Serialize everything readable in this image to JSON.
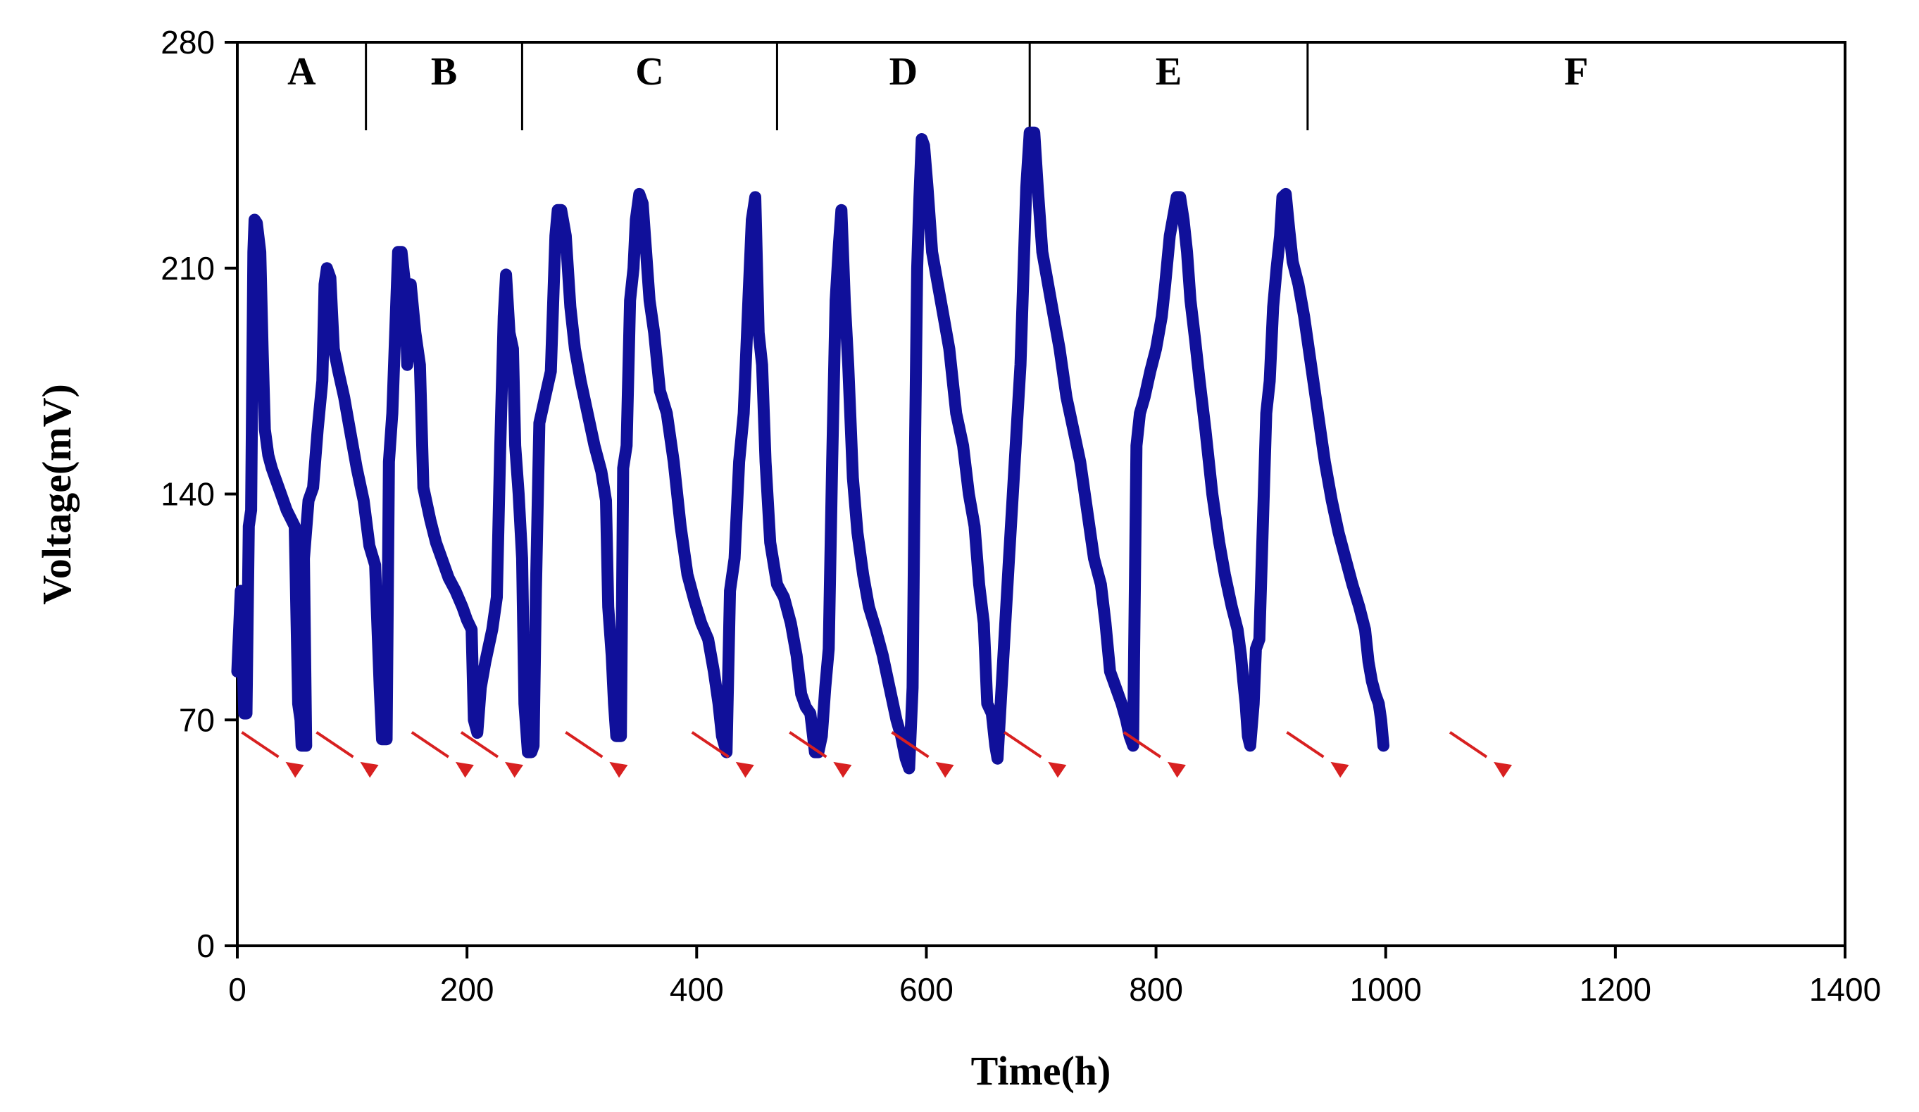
{
  "chart_data": {
    "type": "line",
    "title": "",
    "xlabel": "Time(h)",
    "ylabel": "Voltage(mV)",
    "xlim": [
      0,
      1400
    ],
    "ylim": [
      0,
      280
    ],
    "x_ticks": [
      0,
      200,
      400,
      600,
      800,
      1000,
      1200,
      1400
    ],
    "x_tick_labels": [
      "0",
      "200",
      "400",
      "600",
      "800",
      "1000",
      "1200",
      "1400"
    ],
    "y_ticks": [
      0,
      70,
      140,
      210,
      280
    ],
    "y_tick_labels": [
      "0",
      "70",
      "140",
      "210",
      "280"
    ],
    "grid": false,
    "series_color": "#10109a",
    "arrow_color": "#d82020",
    "phases": [
      {
        "label": "A",
        "start": 0,
        "end": 112
      },
      {
        "label": "B",
        "start": 112,
        "end": 248
      },
      {
        "label": "C",
        "start": 248,
        "end": 470
      },
      {
        "label": "D",
        "start": 470,
        "end": 690
      },
      {
        "label": "E",
        "start": 690,
        "end": 932
      },
      {
        "label": "F",
        "start": 932,
        "end": 1400
      }
    ],
    "series": [
      {
        "name": "Voltage",
        "points": [
          [
            0,
            85
          ],
          [
            3,
            110
          ],
          [
            6,
            72
          ],
          [
            8,
            72
          ],
          [
            10,
            130
          ],
          [
            12,
            135
          ],
          [
            14,
            215
          ],
          [
            15,
            225
          ],
          [
            17,
            224
          ],
          [
            20,
            215
          ],
          [
            22,
            185
          ],
          [
            24,
            160
          ],
          [
            27,
            152
          ],
          [
            30,
            148
          ],
          [
            33,
            145
          ],
          [
            38,
            140
          ],
          [
            43,
            135
          ],
          [
            50,
            130
          ],
          [
            53,
            75
          ],
          [
            55,
            70
          ],
          [
            56,
            62
          ],
          [
            60,
            62
          ],
          [
            58,
            120
          ],
          [
            62,
            138
          ],
          [
            66,
            142
          ],
          [
            70,
            160
          ],
          [
            74,
            175
          ],
          [
            76,
            205
          ],
          [
            78,
            210
          ],
          [
            81,
            207
          ],
          [
            84,
            185
          ],
          [
            88,
            178
          ],
          [
            93,
            170
          ],
          [
            98,
            160
          ],
          [
            104,
            148
          ],
          [
            110,
            138
          ],
          [
            115,
            124
          ],
          [
            120,
            118
          ],
          [
            124,
            80
          ],
          [
            126,
            64
          ],
          [
            130,
            64
          ],
          [
            132,
            150
          ],
          [
            135,
            165
          ],
          [
            140,
            215
          ],
          [
            143,
            215
          ],
          [
            146,
            205
          ],
          [
            148,
            180
          ],
          [
            151,
            205
          ],
          [
            155,
            190
          ],
          [
            159,
            180
          ],
          [
            162,
            142
          ],
          [
            168,
            132
          ],
          [
            173,
            125
          ],
          [
            178,
            120
          ],
          [
            184,
            114
          ],
          [
            190,
            110
          ],
          [
            196,
            105
          ],
          [
            200,
            101
          ],
          [
            204,
            98
          ],
          [
            206,
            70
          ],
          [
            209,
            66
          ],
          [
            212,
            80
          ],
          [
            216,
            88
          ],
          [
            222,
            98
          ],
          [
            226,
            108
          ],
          [
            229,
            155
          ],
          [
            232,
            195
          ],
          [
            234,
            208
          ],
          [
            237,
            190
          ],
          [
            240,
            185
          ],
          [
            242,
            155
          ],
          [
            245,
            140
          ],
          [
            248,
            120
          ],
          [
            250,
            75
          ],
          [
            253,
            60
          ],
          [
            256,
            60
          ],
          [
            258,
            62
          ],
          [
            260,
            110
          ],
          [
            263,
            162
          ],
          [
            268,
            170
          ],
          [
            273,
            178
          ],
          [
            277,
            220
          ],
          [
            279,
            228
          ],
          [
            282,
            228
          ],
          [
            286,
            220
          ],
          [
            290,
            198
          ],
          [
            294,
            185
          ],
          [
            299,
            175
          ],
          [
            305,
            165
          ],
          [
            311,
            155
          ],
          [
            317,
            147
          ],
          [
            321,
            138
          ],
          [
            323,
            105
          ],
          [
            326,
            90
          ],
          [
            328,
            75
          ],
          [
            330,
            65
          ],
          [
            334,
            65
          ],
          [
            336,
            148
          ],
          [
            339,
            155
          ],
          [
            342,
            200
          ],
          [
            345,
            210
          ],
          [
            347,
            225
          ],
          [
            350,
            233
          ],
          [
            353,
            230
          ],
          [
            356,
            215
          ],
          [
            359,
            200
          ],
          [
            363,
            190
          ],
          [
            368,
            172
          ],
          [
            374,
            165
          ],
          [
            380,
            150
          ],
          [
            386,
            130
          ],
          [
            392,
            115
          ],
          [
            398,
            107
          ],
          [
            404,
            100
          ],
          [
            410,
            95
          ],
          [
            415,
            85
          ],
          [
            419,
            75
          ],
          [
            422,
            65
          ],
          [
            426,
            60
          ],
          [
            429,
            110
          ],
          [
            433,
            120
          ],
          [
            437,
            150
          ],
          [
            441,
            165
          ],
          [
            445,
            200
          ],
          [
            448,
            225
          ],
          [
            451,
            232
          ],
          [
            454,
            190
          ],
          [
            457,
            180
          ],
          [
            460,
            150
          ],
          [
            464,
            125
          ],
          [
            470,
            112
          ],
          [
            476,
            108
          ],
          [
            482,
            100
          ],
          [
            487,
            90
          ],
          [
            491,
            78
          ],
          [
            495,
            74
          ],
          [
            499,
            72
          ],
          [
            503,
            60
          ],
          [
            506,
            60
          ],
          [
            509,
            65
          ],
          [
            512,
            80
          ],
          [
            515,
            92
          ],
          [
            518,
            150
          ],
          [
            521,
            200
          ],
          [
            524,
            218
          ],
          [
            526,
            228
          ],
          [
            529,
            200
          ],
          [
            532,
            180
          ],
          [
            536,
            145
          ],
          [
            540,
            128
          ],
          [
            545,
            115
          ],
          [
            550,
            105
          ],
          [
            556,
            98
          ],
          [
            562,
            90
          ],
          [
            568,
            80
          ],
          [
            574,
            70
          ],
          [
            578,
            65
          ],
          [
            582,
            58
          ],
          [
            585,
            55
          ],
          [
            588,
            80
          ],
          [
            590,
            150
          ],
          [
            592,
            210
          ],
          [
            594,
            232
          ],
          [
            596,
            250
          ],
          [
            598,
            248
          ],
          [
            601,
            235
          ],
          [
            605,
            215
          ],
          [
            610,
            205
          ],
          [
            615,
            195
          ],
          [
            620,
            185
          ],
          [
            626,
            165
          ],
          [
            632,
            155
          ],
          [
            637,
            140
          ],
          [
            642,
            130
          ],
          [
            646,
            112
          ],
          [
            650,
            100
          ],
          [
            653,
            75
          ],
          [
            657,
            72
          ],
          [
            660,
            62
          ],
          [
            662,
            58
          ],
          [
            672,
            120
          ],
          [
            682,
            180
          ],
          [
            687,
            235
          ],
          [
            690,
            252
          ],
          [
            694,
            252
          ],
          [
            697,
            235
          ],
          [
            701,
            215
          ],
          [
            706,
            205
          ],
          [
            711,
            195
          ],
          [
            716,
            185
          ],
          [
            722,
            170
          ],
          [
            728,
            160
          ],
          [
            734,
            150
          ],
          [
            740,
            135
          ],
          [
            746,
            120
          ],
          [
            752,
            112
          ],
          [
            756,
            100
          ],
          [
            760,
            85
          ],
          [
            765,
            80
          ],
          [
            770,
            75
          ],
          [
            774,
            70
          ],
          [
            777,
            65
          ],
          [
            780,
            62
          ],
          [
            783,
            155
          ],
          [
            786,
            165
          ],
          [
            790,
            170
          ],
          [
            795,
            178
          ],
          [
            800,
            185
          ],
          [
            805,
            195
          ],
          [
            808,
            205
          ],
          [
            812,
            220
          ],
          [
            816,
            228
          ],
          [
            818,
            232
          ],
          [
            821,
            232
          ],
          [
            824,
            225
          ],
          [
            827,
            215
          ],
          [
            830,
            200
          ],
          [
            834,
            188
          ],
          [
            838,
            175
          ],
          [
            843,
            160
          ],
          [
            849,
            140
          ],
          [
            855,
            125
          ],
          [
            860,
            115
          ],
          [
            866,
            105
          ],
          [
            871,
            98
          ],
          [
            874,
            90
          ],
          [
            876,
            82
          ],
          [
            878,
            75
          ],
          [
            880,
            65
          ],
          [
            882,
            62
          ],
          [
            885,
            75
          ],
          [
            887,
            92
          ],
          [
            890,
            95
          ],
          [
            893,
            130
          ],
          [
            896,
            165
          ],
          [
            899,
            175
          ],
          [
            902,
            198
          ],
          [
            905,
            210
          ],
          [
            908,
            220
          ],
          [
            910,
            232
          ],
          [
            913,
            233
          ],
          [
            916,
            222
          ],
          [
            919,
            212
          ],
          [
            924,
            205
          ],
          [
            929,
            195
          ],
          [
            935,
            180
          ],
          [
            941,
            165
          ],
          [
            947,
            150
          ],
          [
            953,
            138
          ],
          [
            959,
            128
          ],
          [
            965,
            120
          ],
          [
            971,
            112
          ],
          [
            977,
            105
          ],
          [
            982,
            98
          ],
          [
            985,
            88
          ],
          [
            988,
            82
          ],
          [
            991,
            78
          ],
          [
            994,
            75
          ],
          [
            996,
            70
          ],
          [
            998,
            62
          ]
        ]
      }
    ],
    "annotations": {
      "arrows_at": [
        42,
        107,
        190,
        233,
        324,
        434,
        519,
        608,
        706,
        810,
        952,
        1094
      ]
    }
  }
}
